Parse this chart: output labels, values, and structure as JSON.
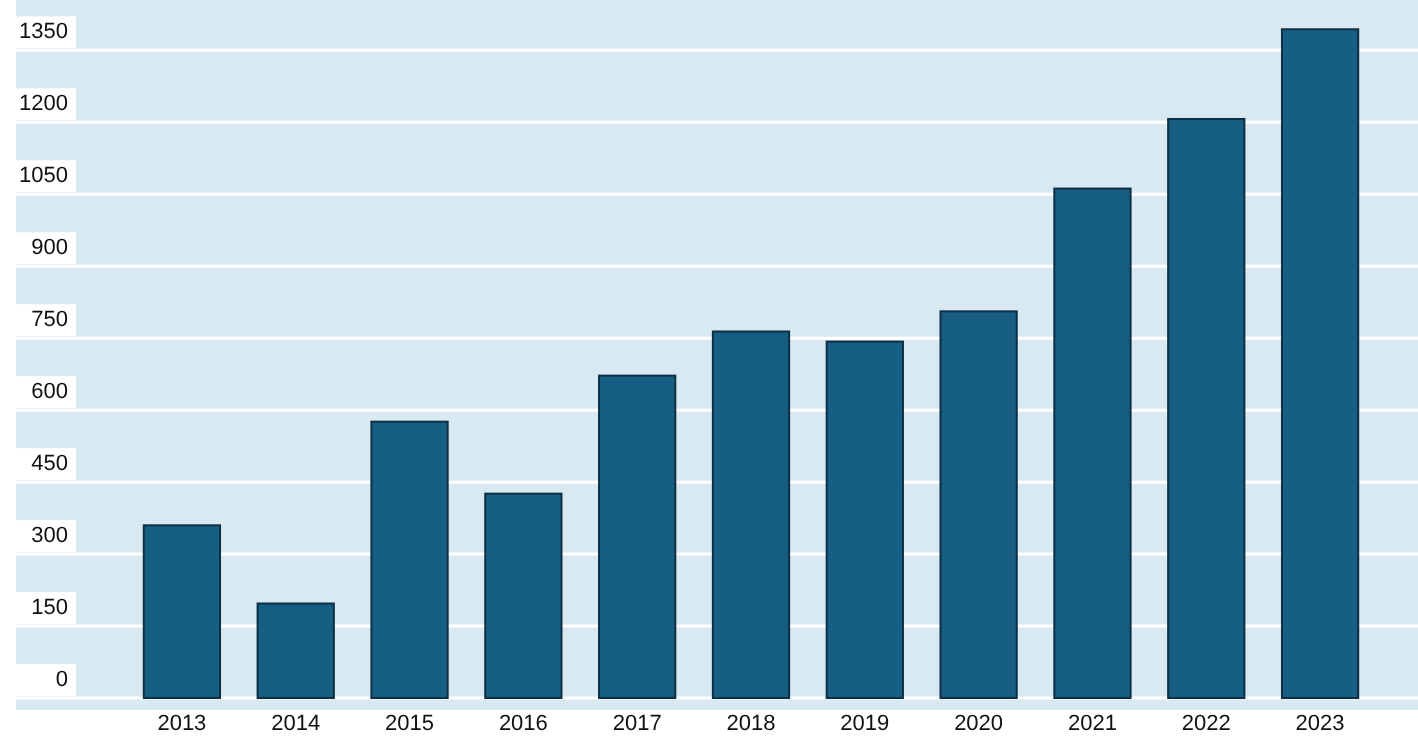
{
  "chart_data": {
    "type": "bar",
    "categories": [
      "2013",
      "2014",
      "2015",
      "2016",
      "2017",
      "2018",
      "2019",
      "2020",
      "2021",
      "2022",
      "2023"
    ],
    "values": [
      360,
      197,
      576,
      426,
      672,
      764,
      743,
      806,
      1062,
      1207,
      1394
    ],
    "color": "#175f82",
    "ylim": [
      -25,
      1455
    ],
    "yticks": [
      0,
      150,
      300,
      450,
      600,
      750,
      900,
      1050,
      1200,
      1350
    ],
    "grid": "y"
  }
}
